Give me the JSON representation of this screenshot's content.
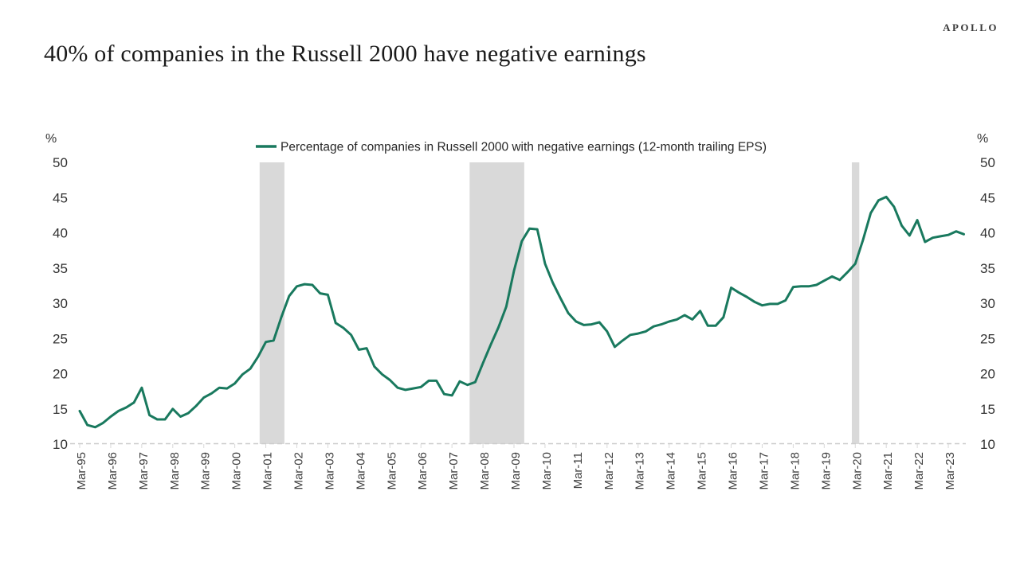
{
  "header": {
    "title": "40% of companies in the Russell 2000 have negative earnings",
    "brand": "APOLLO"
  },
  "colors": {
    "line_green": "#19795e",
    "band_gray": "#d9d9d9",
    "baseline_gray": "#cccccc",
    "text_dark": "#1a1a1a",
    "axis_text": "#404040"
  },
  "chart_data": {
    "type": "line",
    "title": "40% of companies in the Russell 2000 have negative earnings",
    "legend_label": "Percentage of companies in Russell 2000 with negative earnings (12-month trailing EPS)",
    "legend_position": "top-center",
    "grid": "off",
    "y_axis": {
      "unit_label": "%",
      "ticks": [
        50,
        45,
        40,
        35,
        30,
        25,
        20,
        15,
        10
      ],
      "range": [
        10,
        50
      ],
      "sides": "both"
    },
    "x_axis": {
      "tick_labels": [
        "Mar-95",
        "Mar-96",
        "Mar-97",
        "Mar-98",
        "Mar-99",
        "Mar-00",
        "Mar-01",
        "Mar-02",
        "Mar-03",
        "Mar-04",
        "Mar-05",
        "Mar-06",
        "Mar-07",
        "Mar-08",
        "Mar-09",
        "Mar-10",
        "Mar-11",
        "Mar-12",
        "Mar-13",
        "Mar-14",
        "Mar-15",
        "Mar-16",
        "Mar-17",
        "Mar-18",
        "Mar-19",
        "Mar-20",
        "Mar-21",
        "Mar-22",
        "Mar-23"
      ],
      "range_labels": [
        "Mar-95",
        "Sep-23"
      ]
    },
    "recession_bands": [
      {
        "start_year": 2001.05,
        "end_year": 2001.85
      },
      {
        "start_year": 2007.82,
        "end_year": 2009.58
      },
      {
        "start_year": 2020.14,
        "end_year": 2020.38
      }
    ],
    "series": [
      {
        "name": "Percentage of companies in Russell 2000 with negative earnings (12-month trailing EPS)",
        "color": "#19795e",
        "frequency": "quarterly",
        "x": [
          "Mar-95",
          "Jun-95",
          "Sep-95",
          "Dec-95",
          "Mar-96",
          "Jun-96",
          "Sep-96",
          "Dec-96",
          "Mar-97",
          "Jun-97",
          "Sep-97",
          "Dec-97",
          "Mar-98",
          "Jun-98",
          "Sep-98",
          "Dec-98",
          "Mar-99",
          "Jun-99",
          "Sep-99",
          "Dec-99",
          "Mar-00",
          "Jun-00",
          "Sep-00",
          "Dec-00",
          "Mar-01",
          "Jun-01",
          "Sep-01",
          "Dec-01",
          "Mar-02",
          "Jun-02",
          "Sep-02",
          "Dec-02",
          "Mar-03",
          "Jun-03",
          "Sep-03",
          "Dec-03",
          "Mar-04",
          "Jun-04",
          "Sep-04",
          "Dec-04",
          "Mar-05",
          "Jun-05",
          "Sep-05",
          "Dec-05",
          "Mar-06",
          "Jun-06",
          "Sep-06",
          "Dec-06",
          "Mar-07",
          "Jun-07",
          "Sep-07",
          "Dec-07",
          "Mar-08",
          "Jun-08",
          "Sep-08",
          "Dec-08",
          "Mar-09",
          "Jun-09",
          "Sep-09",
          "Dec-09",
          "Mar-10",
          "Jun-10",
          "Sep-10",
          "Dec-10",
          "Mar-11",
          "Jun-11",
          "Sep-11",
          "Dec-11",
          "Mar-12",
          "Jun-12",
          "Sep-12",
          "Dec-12",
          "Mar-13",
          "Jun-13",
          "Sep-13",
          "Dec-13",
          "Mar-14",
          "Jun-14",
          "Sep-14",
          "Dec-14",
          "Mar-15",
          "Jun-15",
          "Sep-15",
          "Dec-15",
          "Mar-16",
          "Jun-16",
          "Sep-16",
          "Dec-16",
          "Mar-17",
          "Jun-17",
          "Sep-17",
          "Dec-17",
          "Mar-18",
          "Jun-18",
          "Sep-18",
          "Dec-18",
          "Mar-19",
          "Jun-19",
          "Sep-19",
          "Dec-19",
          "Mar-20",
          "Jun-20",
          "Sep-20",
          "Dec-20",
          "Mar-21",
          "Jun-21",
          "Sep-21",
          "Dec-21",
          "Mar-22",
          "Jun-22",
          "Sep-22",
          "Dec-22",
          "Mar-23",
          "Jun-23",
          "Sep-23"
        ],
        "values": [
          14.7,
          12.7,
          12.4,
          13.0,
          13.9,
          14.7,
          15.2,
          15.9,
          18.0,
          14.1,
          13.5,
          13.5,
          15.0,
          13.9,
          14.4,
          15.4,
          16.6,
          17.2,
          18.0,
          17.9,
          18.6,
          19.9,
          20.7,
          22.4,
          24.5,
          24.7,
          28.0,
          31.0,
          32.4,
          32.7,
          32.6,
          31.4,
          31.2,
          27.2,
          26.5,
          25.5,
          23.4,
          23.6,
          21.0,
          19.9,
          19.1,
          18.0,
          17.7,
          17.9,
          18.1,
          19.0,
          19.0,
          17.1,
          16.9,
          18.9,
          18.4,
          18.8,
          21.5,
          24.1,
          26.6,
          29.5,
          34.6,
          38.8,
          40.6,
          40.5,
          35.6,
          32.9,
          30.7,
          28.6,
          27.4,
          26.9,
          27.0,
          27.3,
          26.0,
          23.8,
          24.7,
          25.5,
          25.7,
          26.0,
          26.7,
          27.0,
          27.4,
          27.7,
          28.3,
          27.7,
          28.9,
          26.8,
          26.8,
          28.0,
          32.2,
          31.5,
          30.9,
          30.2,
          29.7,
          29.9,
          29.9,
          30.4,
          32.3,
          32.4,
          32.4,
          32.6,
          33.2,
          33.8,
          33.3,
          34.4,
          35.6,
          39.0,
          42.8,
          44.6,
          45.1,
          43.7,
          41.0,
          39.6,
          41.8,
          38.7,
          39.3,
          39.5,
          39.7,
          40.2,
          39.8
        ]
      }
    ]
  }
}
